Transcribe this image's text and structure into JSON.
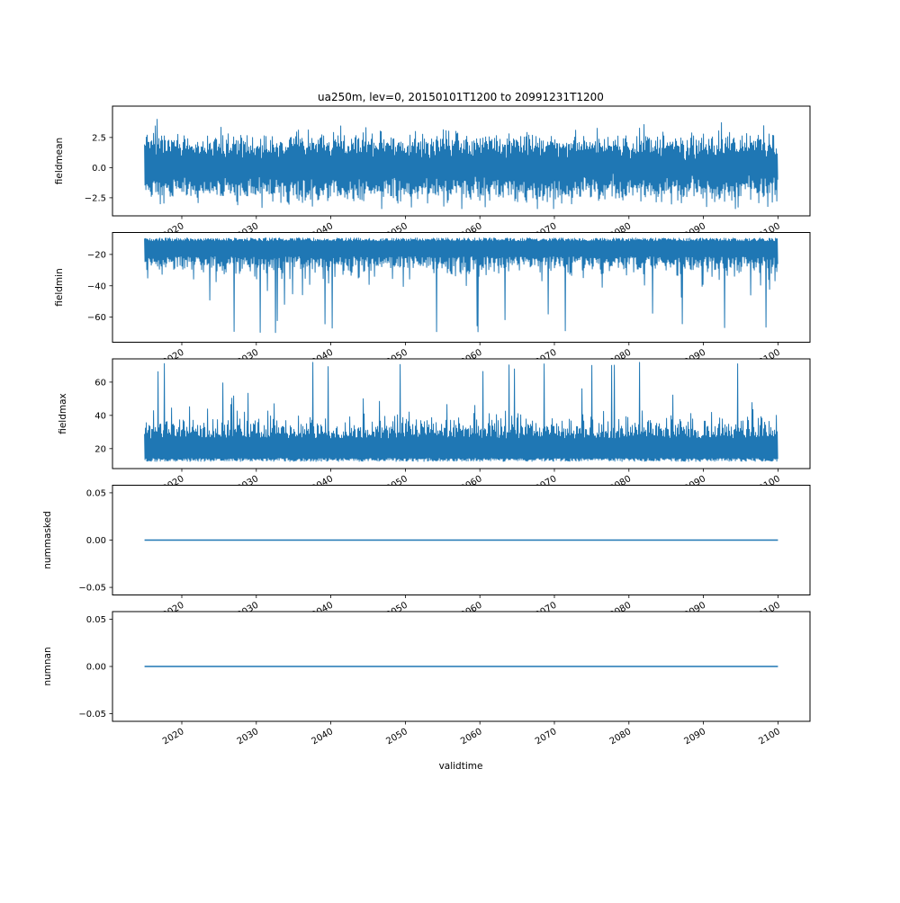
{
  "figure": {
    "title": "ua250m, lev=0, 20150101T1200 to 20991231T1200",
    "xlabel": "validtime",
    "background": "#ffffff",
    "line_color": "#1f77b4",
    "axis_color": "#000000"
  },
  "chart_data": {
    "type": "line",
    "title": "ua250m, lev=0, 20150101T1200 to 20991231T1200",
    "xlabel": "validtime",
    "x_start": 2015.0,
    "x_end": 2100.0,
    "xlim": [
      2010.7,
      2104.3
    ],
    "xticks": [
      2020,
      2030,
      2040,
      2050,
      2060,
      2070,
      2080,
      2090,
      2100
    ],
    "xtick_labels": [
      "2020",
      "2030",
      "2040",
      "2050",
      "2060",
      "2070",
      "2080",
      "2090",
      "2100"
    ],
    "xtick_rotation_deg": 30,
    "grid": false,
    "legend": "none",
    "line_color": "#1f77b4",
    "subplots": [
      {
        "ylabel": "fieldmean",
        "ylim": [
          -4.0,
          5.1
        ],
        "yticks": [
          2.5,
          0.0,
          -2.5
        ],
        "ytick_labels": [
          "2.5",
          "0.0",
          "−2.5"
        ],
        "series": {
          "name": "fieldmean",
          "kind": "noisy",
          "center": 0,
          "dense_band": [
            -1.8,
            1.8
          ],
          "extremes": [
            -3.4,
            4.3
          ]
        }
      },
      {
        "ylabel": "fieldmin",
        "ylim": [
          -76,
          -6
        ],
        "yticks": [
          -20,
          -40,
          -60
        ],
        "ytick_labels": [
          "−20",
          "−40",
          "−60"
        ],
        "series": {
          "name": "fieldmin",
          "kind": "noisy-down",
          "upper_edge": -9.5,
          "dense_band": [
            -28,
            -10
          ],
          "spikes_to": -70
        }
      },
      {
        "ylabel": "fieldmax",
        "ylim": [
          8,
          74
        ],
        "yticks": [
          60,
          40,
          20
        ],
        "ytick_labels": [
          "60",
          "40",
          "20"
        ],
        "series": {
          "name": "fieldmax",
          "kind": "noisy-up",
          "lower_edge": 14.5,
          "dense_band": [
            15,
            33
          ],
          "spikes_to": 72
        }
      },
      {
        "ylabel": "nummasked",
        "ylim": [
          -0.058,
          0.058
        ],
        "yticks": [
          0.05,
          0.0,
          -0.05
        ],
        "ytick_labels": [
          "0.05",
          "0.00",
          "−0.05"
        ],
        "series": {
          "name": "nummasked",
          "kind": "constant",
          "value": 0.0
        }
      },
      {
        "ylabel": "numnan",
        "ylim": [
          -0.058,
          0.058
        ],
        "yticks": [
          0.05,
          0.0,
          -0.05
        ],
        "ytick_labels": [
          "0.05",
          "0.00",
          "−0.05"
        ],
        "series": {
          "name": "numnan",
          "kind": "constant",
          "value": 0.0
        }
      }
    ]
  }
}
